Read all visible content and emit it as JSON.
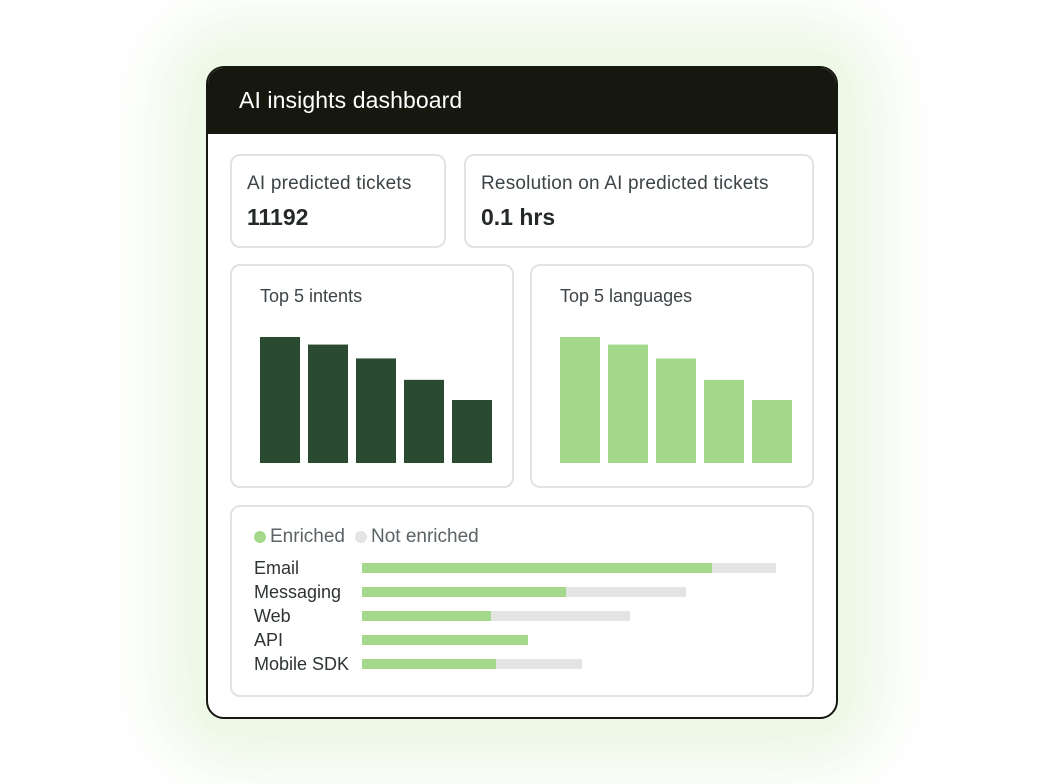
{
  "dashboard": {
    "title": "AI insights dashboard"
  },
  "stats": [
    {
      "label": "AI predicted tickets",
      "value": "11192"
    },
    {
      "label": "Resolution on AI predicted tickets",
      "value": "0.1 hrs"
    }
  ],
  "chart_data": [
    {
      "type": "bar",
      "title": "Top 5 intents",
      "values": [
        100,
        94,
        83,
        66,
        50
      ],
      "color": "#2a4a31"
    },
    {
      "type": "bar",
      "title": "Top 5 languages",
      "values": [
        100,
        94,
        83,
        66,
        50
      ],
      "color": "#a4d98c"
    },
    {
      "type": "bar",
      "orientation": "horizontal",
      "stacked": true,
      "legend": [
        {
          "name": "Enriched",
          "color": "#a4d98c"
        },
        {
          "name": "Not enriched",
          "color": "#e4e4e4"
        }
      ],
      "categories": [
        "Email",
        "Messaging",
        "Web",
        "API",
        "Mobile SDK"
      ],
      "series": [
        {
          "name": "Enriched",
          "values": [
            350,
            204,
            129,
            166,
            134
          ]
        },
        {
          "name": "Not enriched",
          "values": [
            64,
            120,
            139,
            0,
            86
          ]
        }
      ]
    }
  ]
}
